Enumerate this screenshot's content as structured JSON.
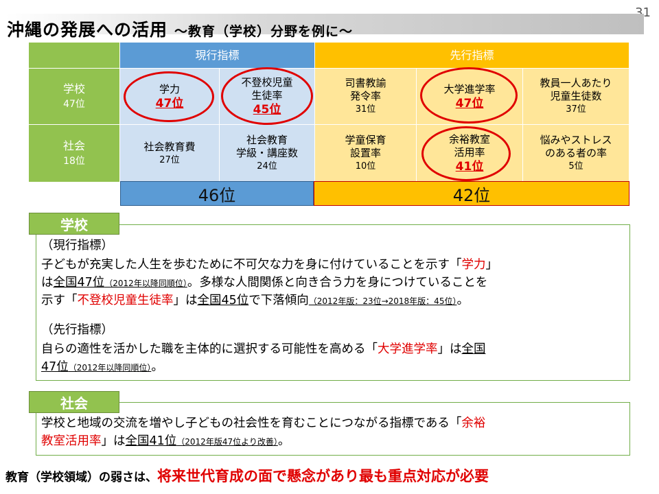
{
  "page_number": "31",
  "title": {
    "main": "沖縄の発展への活用",
    "sub": "～教育（学校）分野を例に～"
  },
  "table": {
    "header_current": "現行指標",
    "header_leading": "先行指標",
    "rows": [
      {
        "label": "学校",
        "rank": "47位",
        "cells": [
          {
            "name": "学力",
            "rank": "47位"
          },
          {
            "name": "不登校児童\n生徒率",
            "rank": "45位"
          },
          {
            "name": "司書教諭\n発令率",
            "rank": "31位"
          },
          {
            "name": "大学進学率",
            "rank": "47位"
          },
          {
            "name": "教員一人あたり\n児童生徒数",
            "rank": "37位"
          }
        ]
      },
      {
        "label": "社会",
        "rank": "18位",
        "cells": [
          {
            "name": "社会教育費",
            "rank": "27位"
          },
          {
            "name": "社会教育\n学級・講座数",
            "rank": "24位"
          },
          {
            "name": "学童保育\n設置率",
            "rank": "10位"
          },
          {
            "name": "余裕教室\n活用率",
            "rank": "41位"
          },
          {
            "name": "悩みやストレス\nのある者の率",
            "rank": "5位"
          }
        ]
      }
    ],
    "total_current": "46位",
    "total_leading": "42位"
  },
  "school": {
    "tag": "学校",
    "current_heading": "（現行指標）",
    "p1_a": "子どもが充実した人生を歩むために不可欠な力を身に付けていることを示す「",
    "p1_b": "学力",
    "p1_c": "」",
    "p2_a": "は",
    "p2_b": "全国47位",
    "p2_c": "（2012年以降同順位）",
    "p2_d": "。多様な人間関係と向き合う力を身につけていることを",
    "p3_a": "示す「",
    "p3_b": "不登校児童生徒率",
    "p3_c": "」は",
    "p3_d": "全国45位",
    "p3_e": "で下落傾向",
    "p3_f": "（2012年版：23位→2018年版：45位）",
    "p3_g": "。",
    "leading_heading": "（先行指標）",
    "p4_a": "自らの適性を活かした職を主体的に選択する可能性を高める「",
    "p4_b": "大学進学率",
    "p4_c": "」は",
    "p4_d": "全国",
    "p5_a": "47位",
    "p5_b": "（2012年以降同順位）",
    "p5_c": "。"
  },
  "society": {
    "tag": "社会",
    "p1_a": "学校と地域の交流を増やし子どもの社会性を育むことにつながる指標である「",
    "p1_b": "余裕",
    "p2_a": "教室活用率",
    "p2_b": "」は",
    "p2_c": "全国41位",
    "p2_d": "（2012年版47位より改善）",
    "p2_e": "。"
  },
  "conclusion": {
    "lead": "教育（学校領域）の弱さは、",
    "emphasis": "将来世代育成の面で懸念があり最も重点対応が必要"
  },
  "colors": {
    "green": "#92c24f",
    "blue": "#5b9bd5",
    "orange": "#ffc000",
    "red": "#e00000"
  }
}
